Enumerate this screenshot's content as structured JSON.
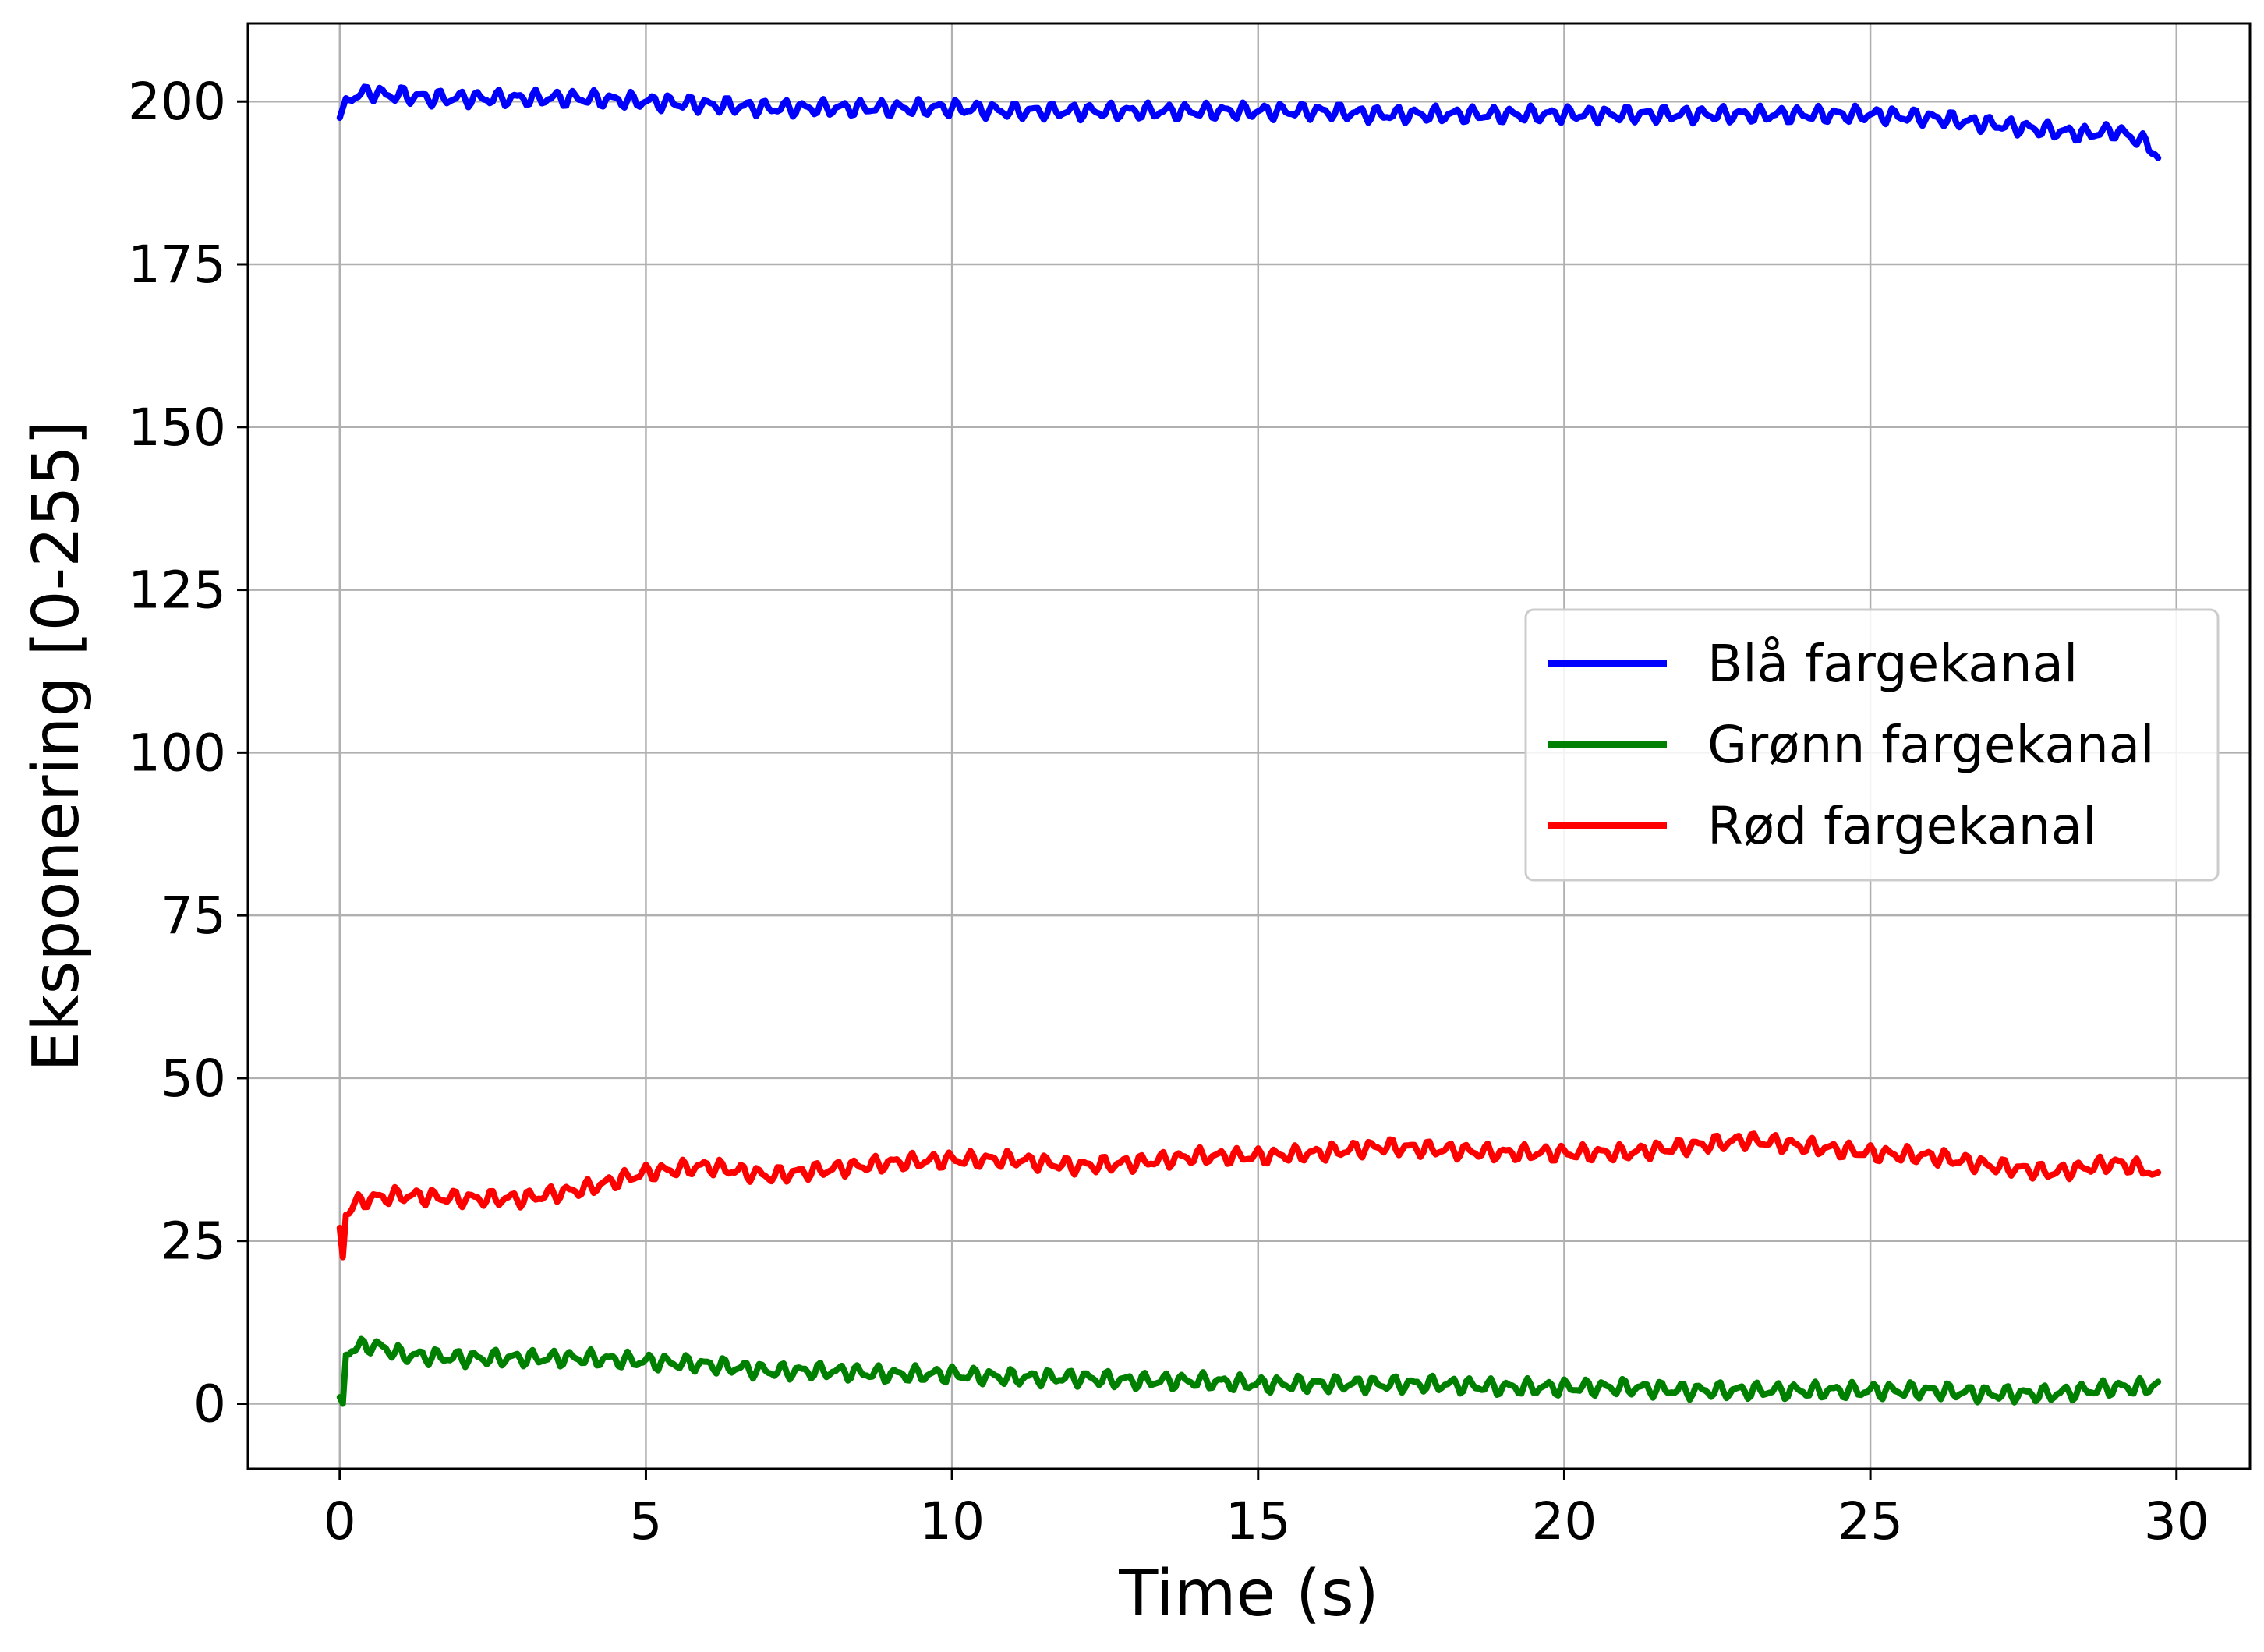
{
  "chart_data": {
    "type": "line",
    "title": "",
    "xlabel": "Time (s)",
    "ylabel": "Eksponering [0-255]",
    "xlim": [
      -1.5,
      31.2
    ],
    "ylim": [
      -10,
      212
    ],
    "xticks": [
      0,
      5,
      10,
      15,
      20,
      25,
      30
    ],
    "yticks": [
      0,
      25,
      50,
      75,
      100,
      125,
      150,
      175,
      200
    ],
    "grid": true,
    "legend_position": "center-right",
    "series": [
      {
        "name": "Blå fargekanal",
        "color": "#0000ff",
        "x": [
          0,
          0.1,
          0.3,
          0.5,
          0.75,
          1,
          1.5,
          2,
          3,
          4,
          5,
          6,
          7,
          8,
          9,
          10,
          11,
          12,
          13,
          14,
          15,
          16,
          17,
          18,
          19,
          20,
          21,
          22,
          23,
          24,
          25,
          26,
          26.5,
          27,
          27.5,
          28,
          28.5,
          29,
          29.3,
          29.6,
          29.7
        ],
        "y": [
          197.5,
          200.5,
          201,
          201.5,
          201,
          201,
          200.5,
          200.5,
          200.5,
          200.5,
          200,
          199.5,
          199,
          199,
          199,
          199,
          198.5,
          198.5,
          198.5,
          198.5,
          198.5,
          198.5,
          198,
          198,
          198,
          198,
          198,
          198,
          198,
          198,
          198,
          197.5,
          197,
          196.5,
          196,
          195.5,
          195,
          195.5,
          194.5,
          193,
          191
        ]
      },
      {
        "name": "Grønn fargekanal",
        "color": "#008000",
        "x": [
          0,
          0.05,
          0.1,
          0.2,
          0.5,
          0.75,
          1,
          2,
          3,
          4,
          5,
          6,
          7,
          8,
          9,
          10,
          11,
          12,
          13,
          14,
          15,
          16,
          17,
          18,
          19,
          20,
          21,
          22,
          23,
          24,
          25,
          26,
          27,
          28,
          29,
          29.5,
          29.7
        ],
        "y": [
          1,
          0,
          7.5,
          8.5,
          9,
          8.5,
          7.5,
          7,
          7,
          7,
          6.5,
          6,
          5,
          5,
          4.5,
          4.5,
          4,
          4,
          3.5,
          3.5,
          3,
          3,
          3,
          3,
          2.5,
          2.5,
          2.5,
          2,
          2,
          2,
          2,
          2,
          1.5,
          1.5,
          2.5,
          2.5,
          3
        ]
      },
      {
        "name": "Rød fargekanal",
        "color": "#ff0000",
        "x": [
          0,
          0.05,
          0.1,
          0.2,
          0.5,
          1,
          2,
          3,
          4,
          5,
          6,
          7,
          8,
          9,
          10,
          11,
          12,
          13,
          14,
          15,
          16,
          17,
          18,
          19,
          20,
          21,
          22,
          23,
          24,
          25,
          26,
          27,
          28,
          29,
          29.5,
          29.7
        ],
        "y": [
          27,
          22.5,
          29,
          30.5,
          31.5,
          32,
          31.5,
          31.5,
          33,
          35.5,
          36.5,
          35,
          36,
          37,
          37.5,
          37.5,
          36.5,
          37,
          38,
          38,
          38.5,
          39.5,
          39,
          38.5,
          38.5,
          38.5,
          39.5,
          40.5,
          39.5,
          38.5,
          38,
          36.5,
          35.5,
          37,
          36,
          34.5
        ]
      }
    ]
  }
}
